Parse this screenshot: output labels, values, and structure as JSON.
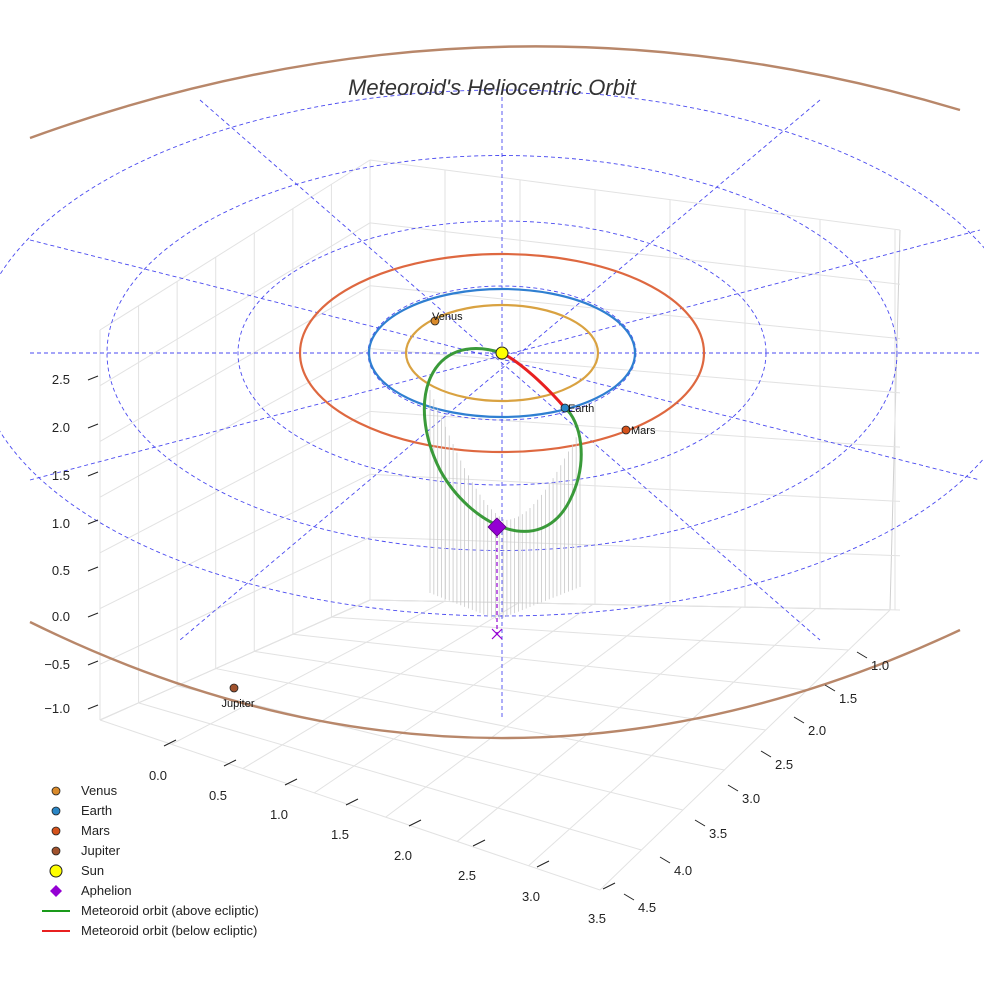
{
  "chart_data": {
    "type": "scatter",
    "title": "Meteoroid's Heliocentric Orbit",
    "xlabel": "",
    "ylabel": "",
    "zlabel": "",
    "x_ticks": [
      "0.0",
      "0.5",
      "1.0",
      "1.5",
      "2.0",
      "2.5",
      "3.0",
      "3.5"
    ],
    "y_ticks": [
      "1.0",
      "1.5",
      "2.0",
      "2.5",
      "3.0",
      "3.5",
      "4.0",
      "4.5"
    ],
    "z_ticks": [
      "−1.0",
      "−0.5",
      "0.0",
      "0.5",
      "1.0",
      "1.5",
      "2.0",
      "2.5"
    ],
    "legend_position": "bottom-left",
    "planets": [
      {
        "name": "Venus",
        "label": "Venus",
        "color": "#d98a2b"
      },
      {
        "name": "Earth",
        "label": "Earth",
        "color": "#2a86c6"
      },
      {
        "name": "Mars",
        "label": "Mars",
        "color": "#d4521c"
      },
      {
        "name": "Jupiter",
        "label": "Jupiter",
        "color": "#a0522d"
      }
    ],
    "orbits": [
      {
        "name": "Venus",
        "color": "#d9a241",
        "semi_major_au": 0.72
      },
      {
        "name": "Earth",
        "color": "#2f7fd1",
        "semi_major_au": 1.0
      },
      {
        "name": "Mars",
        "color": "#de6840",
        "semi_major_au": 1.52
      },
      {
        "name": "Jupiter",
        "color": "#b8876a",
        "semi_major_au": 5.2
      }
    ],
    "sun": {
      "label": "Sun",
      "color": "#ffff00"
    },
    "aphelion": {
      "label": "Aphelion",
      "color": "#9400d3"
    },
    "meteoroid_orbit": {
      "above_label": "Meteoroid orbit (above ecliptic)",
      "above_color": "#3a9a3a",
      "below_label": "Meteoroid orbit (below ecliptic)",
      "below_color": "#e82020"
    },
    "legend": [
      {
        "label": "Venus",
        "marker": "circle",
        "color": "#d98a2b"
      },
      {
        "label": "Earth",
        "marker": "circle",
        "color": "#2a86c6"
      },
      {
        "label": "Mars",
        "marker": "circle",
        "color": "#d4521c"
      },
      {
        "label": "Jupiter",
        "marker": "circle",
        "color": "#a0522d"
      },
      {
        "label": "Sun",
        "marker": "big-circle",
        "color": "#ffff00"
      },
      {
        "label": "Aphelion",
        "marker": "diamond",
        "color": "#9400d3"
      },
      {
        "label": "Meteoroid orbit (above ecliptic)",
        "marker": "line",
        "color": "#1a9a1a"
      },
      {
        "label": "Meteoroid orbit (below ecliptic)",
        "marker": "line",
        "color": "#e82020"
      }
    ]
  }
}
